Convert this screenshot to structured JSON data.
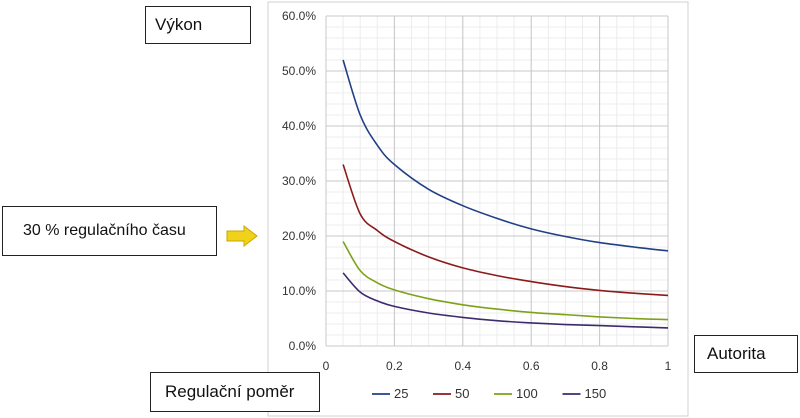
{
  "labels": {
    "y_label": "Výkon",
    "note": "30 % regulačního času",
    "x_label": "Autorita",
    "legend_title": "Regulační poměr"
  },
  "colors": {
    "arrow": "#f0d21a",
    "grid": "#c8c8c8",
    "frame": "#d0d0d0"
  },
  "chart_data": {
    "type": "line",
    "title": "",
    "xlabel": "Autorita",
    "ylabel": "Výkon",
    "xlim": [
      0,
      1
    ],
    "ylim": [
      0,
      0.6
    ],
    "x_ticks": [
      {
        "value": 0,
        "label": "0"
      },
      {
        "value": 0.2,
        "label": "0.2"
      },
      {
        "value": 0.4,
        "label": "0.4"
      },
      {
        "value": 0.6,
        "label": "0.6"
      },
      {
        "value": 0.8,
        "label": "0.8"
      },
      {
        "value": 1,
        "label": "1"
      }
    ],
    "y_ticks": [
      {
        "value": 0,
        "label": "0.0%"
      },
      {
        "value": 0.1,
        "label": "10.0%"
      },
      {
        "value": 0.2,
        "label": "20.0%"
      },
      {
        "value": 0.3,
        "label": "30.0%"
      },
      {
        "value": 0.4,
        "label": "40.0%"
      },
      {
        "value": 0.5,
        "label": "50.0%"
      },
      {
        "value": 0.6,
        "label": "60.0%"
      }
    ],
    "grid": true,
    "legend_position": "bottom",
    "x": [
      0.05,
      0.1,
      0.15,
      0.2,
      0.3,
      0.4,
      0.5,
      0.6,
      0.7,
      0.8,
      0.9,
      1.0
    ],
    "series": [
      {
        "name": "25",
        "color": "#1f3f86",
        "values": [
          0.52,
          0.42,
          0.365,
          0.33,
          0.285,
          0.255,
          0.232,
          0.213,
          0.199,
          0.188,
          0.18,
          0.173
        ]
      },
      {
        "name": "50",
        "color": "#8b1a1a",
        "values": [
          0.33,
          0.24,
          0.21,
          0.19,
          0.162,
          0.142,
          0.128,
          0.117,
          0.108,
          0.101,
          0.096,
          0.092
        ]
      },
      {
        "name": "100",
        "color": "#7da21a",
        "values": [
          0.19,
          0.137,
          0.115,
          0.102,
          0.086,
          0.075,
          0.067,
          0.061,
          0.057,
          0.053,
          0.05,
          0.048
        ]
      },
      {
        "name": "150",
        "color": "#3d2a6e",
        "values": [
          0.133,
          0.098,
          0.082,
          0.072,
          0.06,
          0.052,
          0.046,
          0.042,
          0.039,
          0.037,
          0.035,
          0.033
        ]
      }
    ]
  }
}
